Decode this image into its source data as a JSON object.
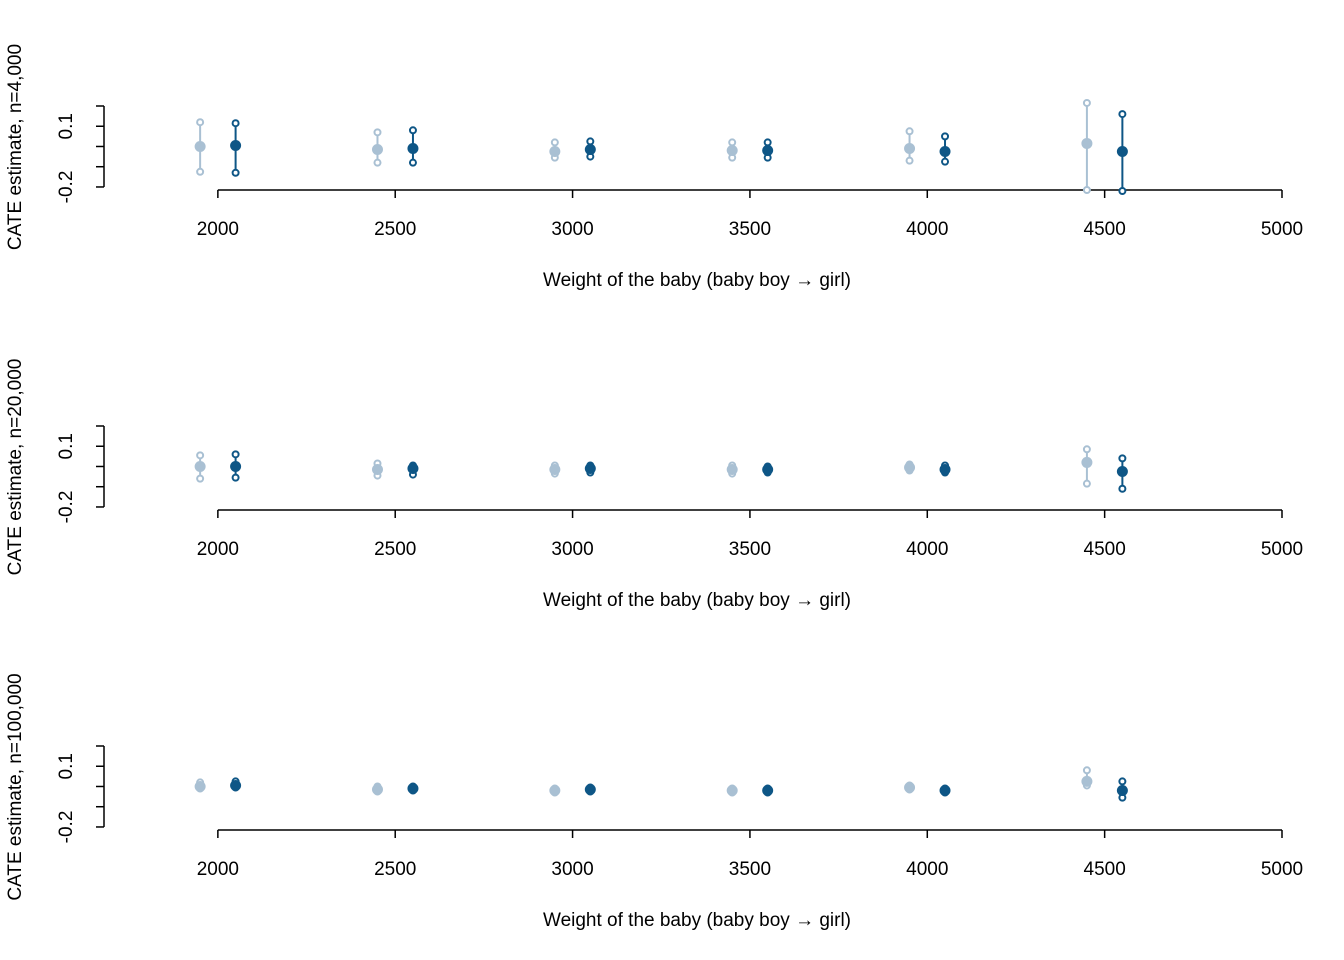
{
  "chart_data": [
    {
      "type": "scatter",
      "ylabel": "CATE estimate, n=4,000",
      "xlabel": "Weight of the baby (baby boy → girl)",
      "xlim": [
        1679,
        5000
      ],
      "xticks": [
        2000,
        2500,
        3000,
        3500,
        4000,
        4500,
        5000
      ],
      "ylim": [
        -0.215,
        0.2
      ],
      "yticks": [
        -0.2,
        {
          "value": -0.1,
          "label": null
        },
        {
          "value": 0,
          "label": null
        },
        0.1,
        {
          "value": 0.2,
          "label": null
        }
      ],
      "series": [
        {
          "color": "#a9c0d3",
          "x": [
            1950,
            2450,
            2950,
            3450,
            3950,
            4450
          ],
          "values": [
            0.0,
            -0.015,
            -0.025,
            -0.02,
            -0.01,
            0.015
          ],
          "lower": [
            -0.125,
            -0.08,
            -0.055,
            -0.055,
            -0.07,
            -0.215
          ],
          "upper": [
            0.12,
            0.07,
            0.02,
            0.02,
            0.075,
            0.215
          ]
        },
        {
          "color": "#0e5686",
          "x": [
            2050,
            2550,
            3050,
            3550,
            4050,
            4550
          ],
          "values": [
            0.005,
            -0.01,
            -0.015,
            -0.02,
            -0.025,
            -0.025
          ],
          "lower": [
            -0.13,
            -0.08,
            -0.05,
            -0.055,
            -0.075,
            -0.22
          ],
          "upper": [
            0.115,
            0.08,
            0.025,
            0.02,
            0.05,
            0.16
          ]
        }
      ]
    },
    {
      "type": "scatter",
      "ylabel": "CATE estimate, n=20,000",
      "xlabel": "Weight of the baby (baby boy → girl)",
      "xlim": [
        1679,
        5000
      ],
      "xticks": [
        2000,
        2500,
        3000,
        3500,
        4000,
        4500,
        5000
      ],
      "ylim": [
        -0.215,
        0.2
      ],
      "yticks": [
        -0.2,
        {
          "value": -0.1,
          "label": null
        },
        {
          "value": 0,
          "label": null
        },
        0.1,
        {
          "value": 0.2,
          "label": null
        }
      ],
      "series": [
        {
          "color": "#a9c0d3",
          "x": [
            1950,
            2450,
            2950,
            3450,
            3950,
            4450
          ],
          "values": [
            0.0,
            -0.015,
            -0.015,
            -0.015,
            -0.005,
            0.02
          ],
          "lower": [
            -0.06,
            -0.045,
            -0.035,
            -0.035,
            -0.02,
            -0.085
          ],
          "upper": [
            0.055,
            0.015,
            0.005,
            0.005,
            0.01,
            0.085
          ]
        },
        {
          "color": "#0e5686",
          "x": [
            2050,
            2550,
            3050,
            3550,
            4050,
            4550
          ],
          "values": [
            0.0,
            -0.01,
            -0.01,
            -0.015,
            -0.015,
            -0.025
          ],
          "lower": [
            -0.055,
            -0.04,
            -0.03,
            -0.03,
            -0.03,
            -0.11
          ],
          "upper": [
            0.06,
            0.005,
            0.005,
            0.0,
            0.005,
            0.04
          ]
        }
      ]
    },
    {
      "type": "scatter",
      "ylabel": "CATE estimate, n=100,000",
      "xlabel": "Weight of the baby (baby boy → girl)",
      "xlim": [
        1679,
        5000
      ],
      "xticks": [
        2000,
        2500,
        3000,
        3500,
        4000,
        4500,
        5000
      ],
      "ylim": [
        -0.215,
        0.2
      ],
      "yticks": [
        -0.2,
        {
          "value": -0.1,
          "label": null
        },
        {
          "value": 0,
          "label": null
        },
        0.1,
        {
          "value": 0.2,
          "label": null
        }
      ],
      "series": [
        {
          "color": "#a9c0d3",
          "x": [
            1950,
            2450,
            2950,
            3450,
            3950,
            4450
          ],
          "values": [
            0.0,
            -0.015,
            -0.02,
            -0.02,
            -0.005,
            0.025
          ],
          "lower": [
            -0.01,
            -0.025,
            -0.03,
            -0.03,
            -0.015,
            0.005
          ],
          "upper": [
            0.02,
            0.0,
            -0.01,
            -0.01,
            0.005,
            0.08
          ]
        },
        {
          "color": "#0e5686",
          "x": [
            2050,
            2550,
            3050,
            3550,
            4050,
            4550
          ],
          "values": [
            0.005,
            -0.01,
            -0.015,
            -0.02,
            -0.02,
            -0.02
          ],
          "lower": [
            -0.005,
            -0.02,
            -0.025,
            -0.03,
            -0.03,
            -0.055
          ],
          "upper": [
            0.025,
            0.0,
            -0.005,
            -0.01,
            -0.01,
            0.025
          ]
        }
      ]
    }
  ]
}
